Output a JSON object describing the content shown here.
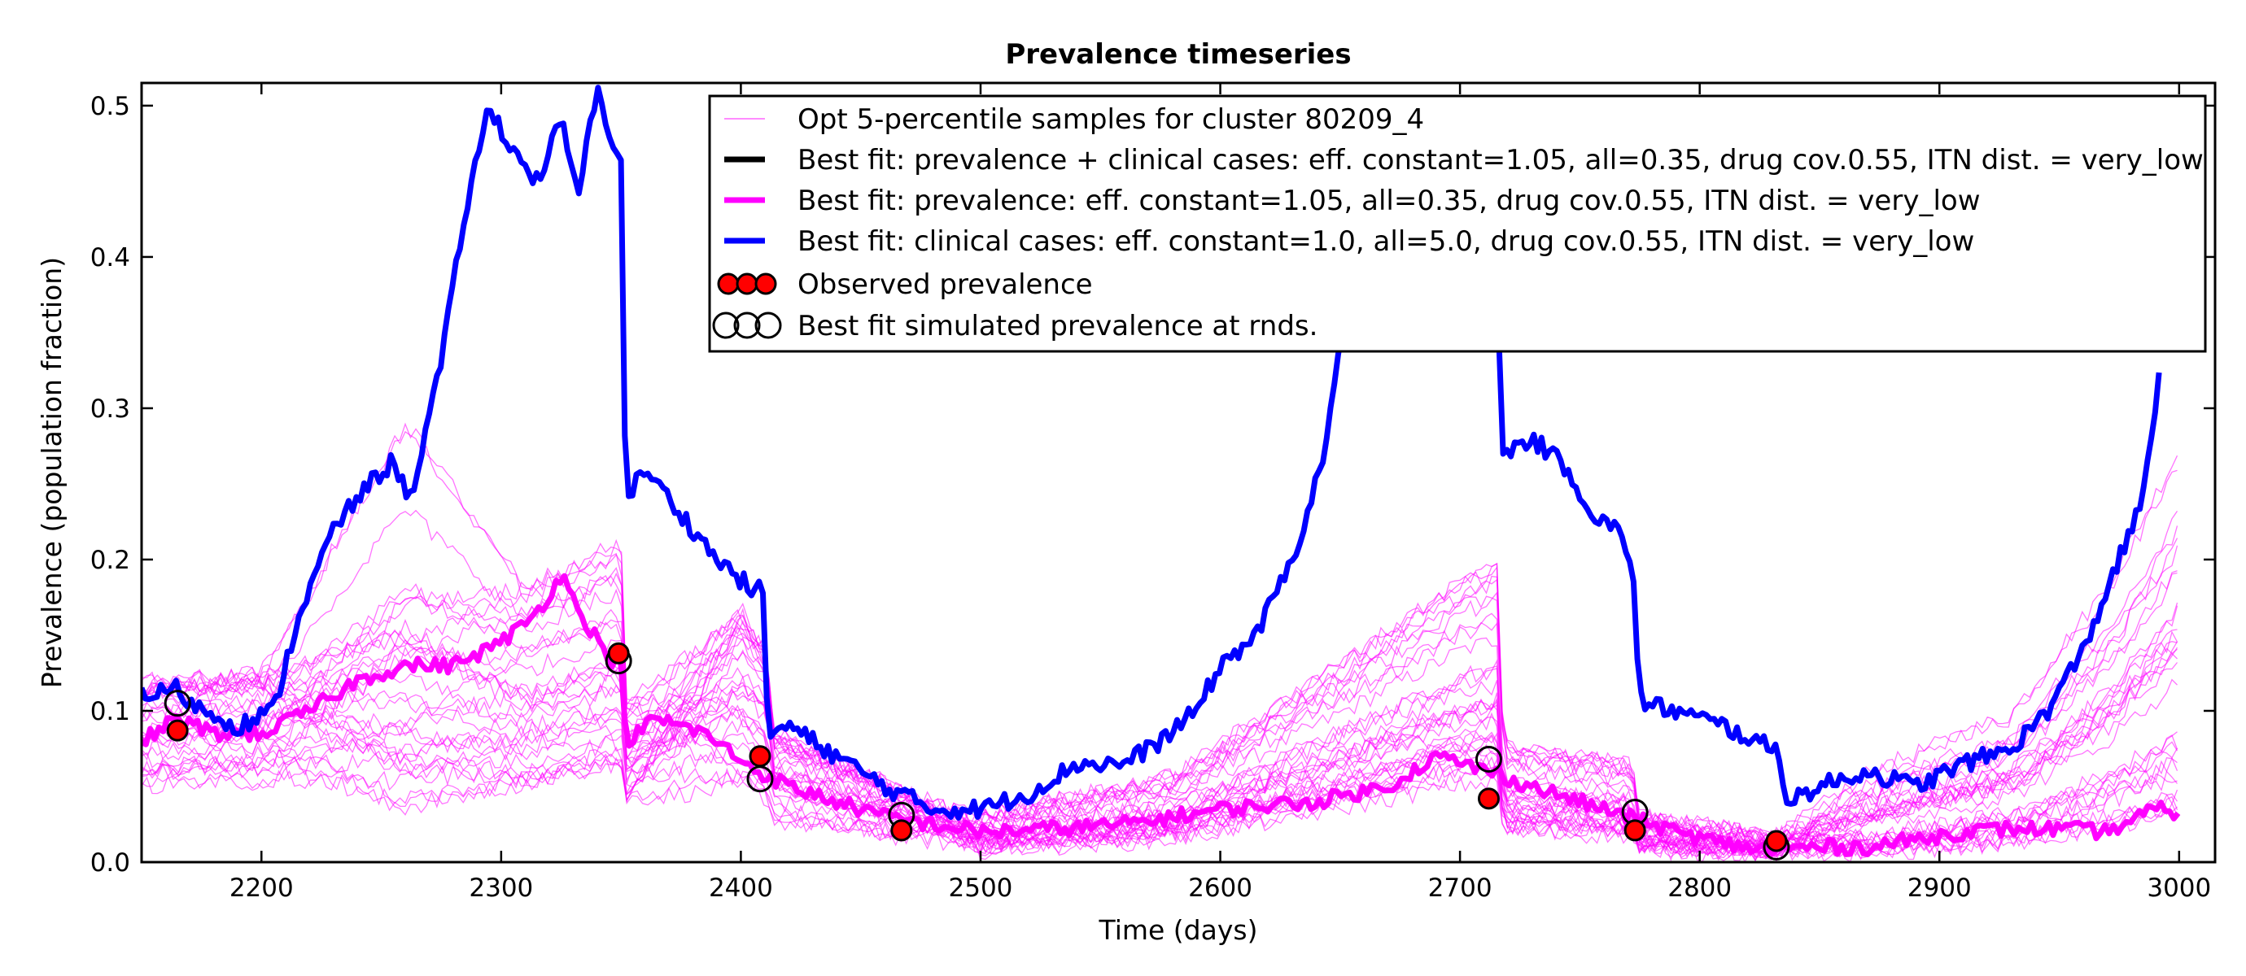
{
  "chart_data": {
    "type": "line",
    "title": "Prevalence timeseries",
    "xlabel": "Time (days)",
    "ylabel": "Prevalence (population fraction)",
    "xlim": [
      2150,
      3015
    ],
    "ylim": [
      0,
      0.515
    ],
    "xticks": [
      "2200",
      "2300",
      "2400",
      "2500",
      "2600",
      "2700",
      "2800",
      "2900",
      "3000"
    ],
    "yticks": [
      "0.0",
      "0.1",
      "0.2",
      "0.3",
      "0.4",
      "0.5"
    ],
    "grid": false,
    "legend_position": "upper-right",
    "colors": {
      "samples": "#ff00ff",
      "best_both": "#000000",
      "best_prevalence": "#ff00ff",
      "best_clinical": "#0000ff",
      "observed": "#ff0000"
    },
    "legend": [
      "Opt 5-percentile samples for cluster 80209_4",
      "Best fit: prevalence + clinical cases: eff. constant=1.05, all=0.35, drug cov.0.55, ITN dist. = very_low",
      "Best fit: prevalence: eff. constant=1.05, all=0.35, drug cov.0.55, ITN dist. = very_low",
      "Best fit: clinical cases: eff. constant=1.0, all=5.0, drug cov.0.55, ITN dist. = very_low",
      "Observed prevalence",
      "Best fit simulated prevalence at rnds."
    ],
    "series": [
      {
        "name": "Best fit: clinical cases: eff. constant=1.0, all=5.0, drug cov.0.55, ITN dist. = very_low",
        "x": [
          2150,
          2165,
          2170,
          2190,
          2205,
          2215,
          2230,
          2245,
          2255,
          2262,
          2275,
          2285,
          2295,
          2305,
          2315,
          2325,
          2332,
          2340,
          2348,
          2350,
          2352,
          2360,
          2375,
          2390,
          2405,
          2410,
          2411,
          2420,
          2440,
          2460,
          2480,
          2500,
          2520,
          2540,
          2560,
          2575,
          2590,
          2600,
          2615,
          2630,
          2642,
          2650,
          2652,
          2705,
          2712,
          2714,
          2716,
          2718,
          2730,
          2745,
          2755,
          2765,
          2772,
          2774,
          2776,
          2790,
          2810,
          2830,
          2833,
          2836,
          2850,
          2870,
          2890,
          2910,
          2930,
          2945,
          2960,
          2975,
          2985,
          2990,
          2993
        ],
        "y": [
          0.11,
          0.115,
          0.105,
          0.09,
          0.1,
          0.16,
          0.22,
          0.25,
          0.265,
          0.24,
          0.33,
          0.43,
          0.5,
          0.47,
          0.45,
          0.49,
          0.44,
          0.51,
          0.47,
          0.46,
          0.24,
          0.26,
          0.23,
          0.2,
          0.18,
          0.18,
          0.085,
          0.09,
          0.07,
          0.05,
          0.035,
          0.035,
          0.045,
          0.065,
          0.065,
          0.08,
          0.1,
          0.13,
          0.15,
          0.2,
          0.26,
          0.34,
          0.35,
          0.35,
          0.35,
          0.35,
          0.35,
          0.27,
          0.28,
          0.26,
          0.23,
          0.22,
          0.2,
          0.13,
          0.105,
          0.1,
          0.09,
          0.075,
          0.075,
          0.04,
          0.05,
          0.06,
          0.05,
          0.065,
          0.075,
          0.1,
          0.14,
          0.2,
          0.24,
          0.3,
          0.35
        ]
      },
      {
        "name": "Best fit: prevalence: eff. constant=1.05, all=0.35, drug cov.0.55, ITN dist. = very_low",
        "x": [
          2150,
          2165,
          2180,
          2200,
          2220,
          2240,
          2260,
          2280,
          2300,
          2315,
          2325,
          2335,
          2345,
          2350,
          2352,
          2365,
          2385,
          2405,
          2420,
          2440,
          2460,
          2480,
          2500,
          2530,
          2560,
          2600,
          2640,
          2670,
          2690,
          2712,
          2730,
          2750,
          2770,
          2790,
          2810,
          2830,
          2850,
          2870,
          2890,
          2910,
          2930,
          2950,
          2970,
          2990,
          3000
        ],
        "y": [
          0.08,
          0.095,
          0.085,
          0.085,
          0.1,
          0.12,
          0.13,
          0.13,
          0.145,
          0.165,
          0.19,
          0.16,
          0.135,
          0.13,
          0.08,
          0.095,
          0.085,
          0.062,
          0.05,
          0.04,
          0.03,
          0.025,
          0.02,
          0.022,
          0.025,
          0.035,
          0.04,
          0.05,
          0.07,
          0.06,
          0.05,
          0.04,
          0.03,
          0.02,
          0.012,
          0.008,
          0.01,
          0.01,
          0.015,
          0.02,
          0.022,
          0.022,
          0.02,
          0.035,
          0.033
        ]
      }
    ],
    "observed": {
      "name": "Observed prevalence",
      "x": [
        2165,
        2349,
        2408,
        2467,
        2712,
        2773,
        2832
      ],
      "y": [
        0.087,
        0.138,
        0.07,
        0.021,
        0.042,
        0.021,
        0.014
      ]
    },
    "simulated_at_rounds": {
      "name": "Best fit simulated prevalence at rnds.",
      "x": [
        2165,
        2349,
        2408,
        2467,
        2712,
        2773,
        2832
      ],
      "y": [
        0.105,
        0.133,
        0.055,
        0.031,
        0.068,
        0.033,
        0.01
      ]
    }
  }
}
